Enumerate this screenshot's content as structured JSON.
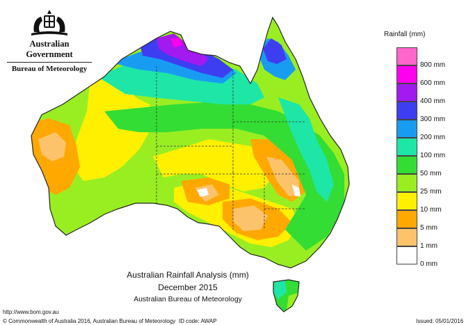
{
  "logo": {
    "government": "Australian Government",
    "bureau": "Bureau of Meteorology",
    "crest_icon": "commonwealth-coat-of-arms-icon"
  },
  "legend": {
    "title": "Rainfall (mm)",
    "items": [
      {
        "label": "",
        "color": "#ff66cc"
      },
      {
        "label": "800 mm",
        "color": "#ff00ee"
      },
      {
        "label": "600 mm",
        "color": "#a31af0"
      },
      {
        "label": "400 mm",
        "color": "#3d3ef2"
      },
      {
        "label": "300 mm",
        "color": "#189cf2"
      },
      {
        "label": "200 mm",
        "color": "#1ee6a6"
      },
      {
        "label": "100 mm",
        "color": "#33dd33"
      },
      {
        "label": "50 mm",
        "color": "#99ee22"
      },
      {
        "label": "25 mm",
        "color": "#fff000"
      },
      {
        "label": "10 mm",
        "color": "#ffa800"
      },
      {
        "label": "5 mm",
        "color": "#fcc36a"
      },
      {
        "label": "1 mm",
        "color": "#ffffff"
      },
      {
        "label": "0 mm",
        "color": ""
      }
    ]
  },
  "title": {
    "line1": "Australian Rainfall Analysis (mm)",
    "line2": "December 2015",
    "line3": "Australian Bureau of Meteorology"
  },
  "footer": {
    "url": "http://www.bom.gov.au",
    "copyright": "© Commonwealth of Australia 2016, Australian Bureau of Meteorology",
    "id_code": "ID code: AWAP",
    "issued": "Issued: 05/01/2016"
  }
}
